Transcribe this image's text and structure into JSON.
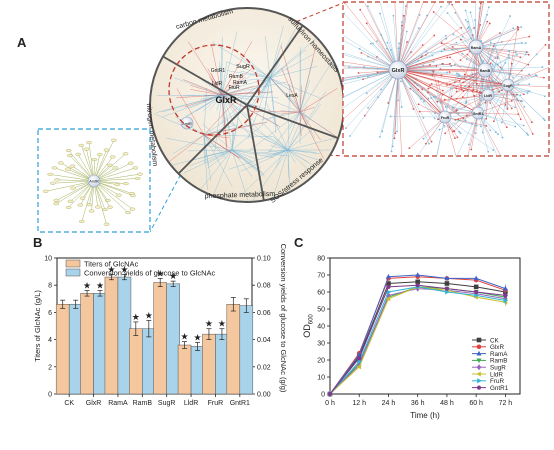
{
  "panel_a": {
    "letter": "A",
    "sectors": [
      {
        "label": "carbon metabolism"
      },
      {
        "label": "sulfur/iron homeostasis"
      },
      {
        "label": "SOS/stress response"
      },
      {
        "label": "phosphate metabolism"
      },
      {
        "label": "nitrogen metabolism"
      }
    ],
    "node_labels": [
      "GlxR",
      "SugR",
      "GntR1",
      "RamB",
      "RamA",
      "LldR",
      "FruR",
      "LexA",
      "AmtR"
    ],
    "zoom_node_labels": [
      "GlxR",
      "RamA",
      "RamB",
      "SugR",
      "LldR",
      "FruR",
      "GntR1"
    ],
    "amtr_label": "AmtR",
    "colors": {
      "red_link": "#d9534f",
      "blue_link": "#7ab8d8",
      "green_link": "#9aa84a",
      "frame_red": "#c0392b",
      "frame_blue": "#2e9fd6"
    }
  },
  "chart_data": [
    {
      "type": "bar",
      "panel": "B",
      "categories": [
        "CK",
        "GlxR",
        "RamA",
        "RamB",
        "SugR",
        "LldR",
        "FruR",
        "GntR1"
      ],
      "series": [
        {
          "name": "Titers of GlcNAc",
          "axis": "left",
          "color": "#f5c79e",
          "values": [
            6.6,
            7.4,
            8.6,
            4.8,
            8.2,
            3.6,
            4.4,
            6.6
          ],
          "errors": [
            0.3,
            0.2,
            0.2,
            0.5,
            0.3,
            0.25,
            0.4,
            0.5
          ],
          "marked": [
            false,
            true,
            true,
            true,
            true,
            true,
            true,
            false
          ]
        },
        {
          "name": "Conversion yields of glucose to GlcNAc",
          "axis": "right",
          "color": "#a9d3ea",
          "values": [
            0.066,
            0.074,
            0.086,
            0.048,
            0.081,
            0.035,
            0.044,
            0.065
          ],
          "errors": [
            0.003,
            0.002,
            0.002,
            0.006,
            0.002,
            0.003,
            0.004,
            0.005
          ],
          "marked": [
            false,
            true,
            true,
            true,
            true,
            true,
            true,
            false
          ]
        }
      ],
      "marker": "★",
      "ylabel": "Titers of GlcNAc (g/L)",
      "ylabel_right": "Conversion yields of glucose to GlcNAc (g/g)",
      "ylim": [
        0,
        10
      ],
      "ylim_right": [
        0,
        0.1
      ],
      "yticks": [
        0,
        2,
        4,
        6,
        8,
        10
      ],
      "yticks_right": [
        "0.00",
        "0.02",
        "0.04",
        "0.06",
        "0.08",
        "0.10"
      ],
      "legend": "top-left",
      "grid": false
    },
    {
      "type": "line",
      "panel": "C",
      "xlabel": "Time (h)",
      "ylabel_main": "OD",
      "ylabel_sub": "600",
      "x": [
        0,
        12,
        24,
        36,
        48,
        60,
        72
      ],
      "xticks": [
        "0 h",
        "12 h",
        "24 h",
        "36 h",
        "48 h",
        "60 h",
        "72 h"
      ],
      "ylim": [
        0,
        80
      ],
      "yticks": [
        0,
        10,
        20,
        30,
        40,
        50,
        60,
        70,
        80
      ],
      "xlim": [
        0,
        78
      ],
      "legend": "bottom-right",
      "grid": false,
      "series": [
        {
          "name": "CK",
          "color": "#3f3f3f",
          "marker": "square",
          "values": [
            0,
            22,
            65,
            66,
            65,
            63,
            60
          ]
        },
        {
          "name": "GlxR",
          "color": "#e0443e",
          "marker": "circle",
          "values": [
            0,
            24,
            68,
            69,
            68,
            67,
            61
          ]
        },
        {
          "name": "RamA",
          "color": "#3f63c9",
          "marker": "triangle",
          "values": [
            0,
            23,
            69,
            70,
            68,
            68,
            62
          ]
        },
        {
          "name": "RamB",
          "color": "#3daa4e",
          "marker": "triangle-down",
          "values": [
            0,
            18,
            57,
            63,
            62,
            60,
            57
          ]
        },
        {
          "name": "SugR",
          "color": "#9467bd",
          "marker": "diamond",
          "values": [
            0,
            17,
            58,
            62,
            61,
            59,
            56
          ]
        },
        {
          "name": "LldR",
          "color": "#c9bf2e",
          "marker": "triangle-left",
          "values": [
            0,
            16,
            56,
            63,
            61,
            57,
            54
          ]
        },
        {
          "name": "FruR",
          "color": "#31b6d4",
          "marker": "triangle-right",
          "values": [
            0,
            19,
            60,
            63,
            60,
            58,
            55
          ]
        },
        {
          "name": "GntR1",
          "color": "#7d3a8c",
          "marker": "hexagon",
          "values": [
            0,
            21,
            63,
            64,
            62,
            60,
            58
          ]
        }
      ]
    }
  ],
  "panel_labels": {
    "b": "B",
    "c": "C"
  }
}
